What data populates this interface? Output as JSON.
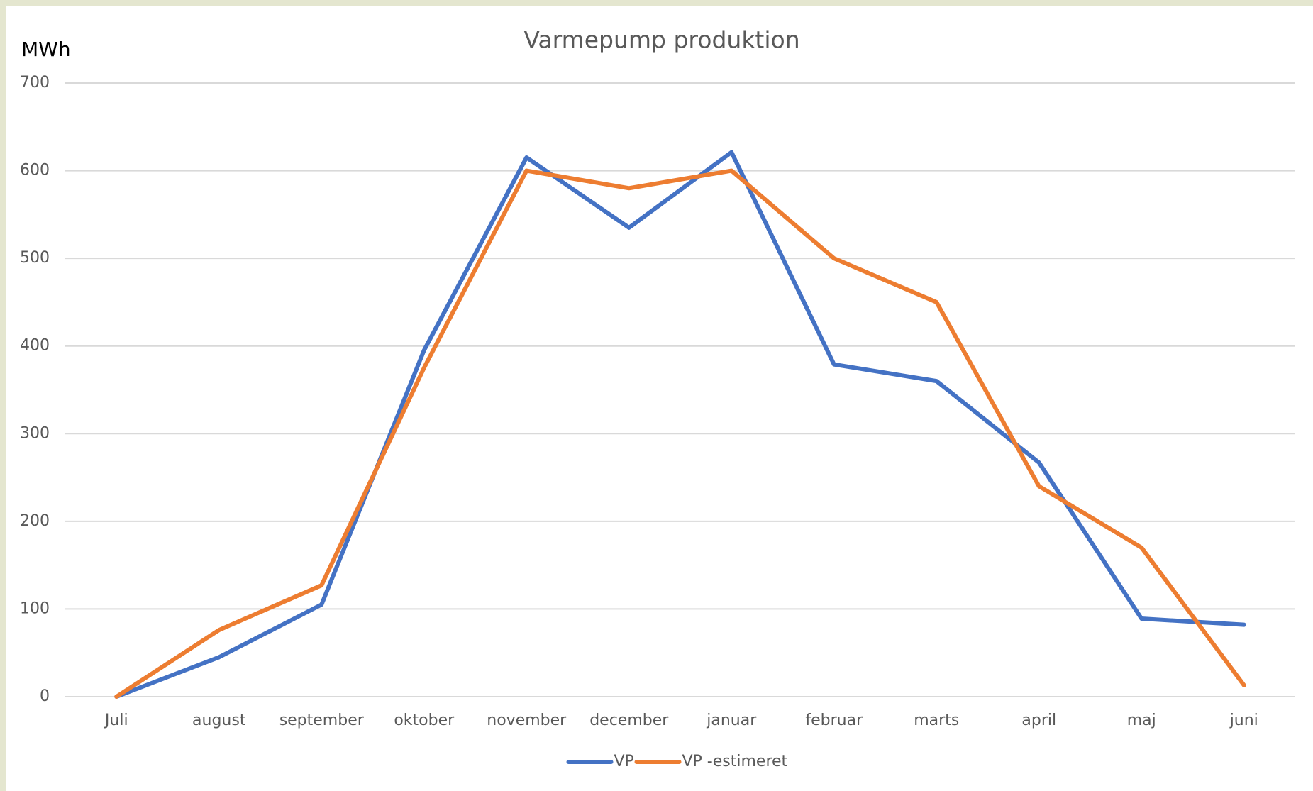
{
  "chart_data": {
    "type": "line",
    "title": "Varmepump produktion",
    "y_label": "MWh",
    "categories": [
      "Juli",
      "august",
      "september",
      "oktober",
      "november",
      "december",
      "januar",
      "februar",
      "marts",
      "april",
      "maj",
      "juni"
    ],
    "series": [
      {
        "name": "VP",
        "color": "#4472c4",
        "values": [
          0,
          45,
          105,
          395,
          615,
          535,
          621,
          379,
          360,
          267,
          89,
          82
        ]
      },
      {
        "name": "VP -estimeret",
        "color": "#ed7d31",
        "values": [
          0,
          76,
          127,
          375,
          600,
          580,
          600,
          500,
          450,
          240,
          170,
          13
        ]
      }
    ],
    "ylim": [
      0,
      700
    ],
    "yticks": [
      0,
      100,
      200,
      300,
      400,
      500,
      600,
      700
    ],
    "grid": true,
    "legend": "bottom"
  }
}
